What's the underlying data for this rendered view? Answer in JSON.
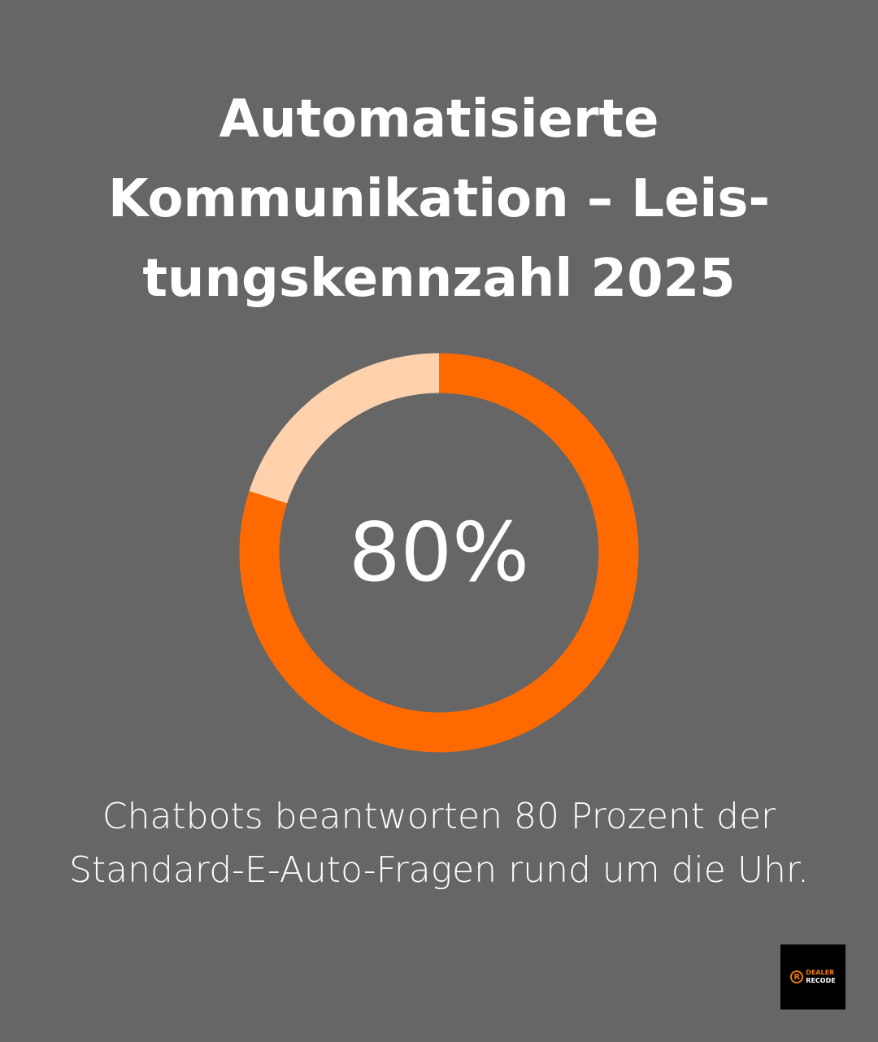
{
  "title_lines": [
    "Automatisierte",
    "Kommunikation – Leis-",
    "tungskennzahl 2025"
  ],
  "chart_data": {
    "type": "pie",
    "variant": "donut",
    "title": "Automatisierte Kommunikation – Leistungskennzahl 2025",
    "values": [
      80,
      20
    ],
    "colors": [
      "#ff6a00",
      "#ffd2ad"
    ],
    "center_label": "80%",
    "start": "top",
    "direction": "clockwise"
  },
  "caption_lines": [
    "Chatbots beantworten 80 Prozent der",
    "Standard-E-Auto-Fragen rund um die Uhr."
  ],
  "logo": {
    "line1": "DEALER",
    "line2": "RECODE",
    "mark": "R"
  }
}
